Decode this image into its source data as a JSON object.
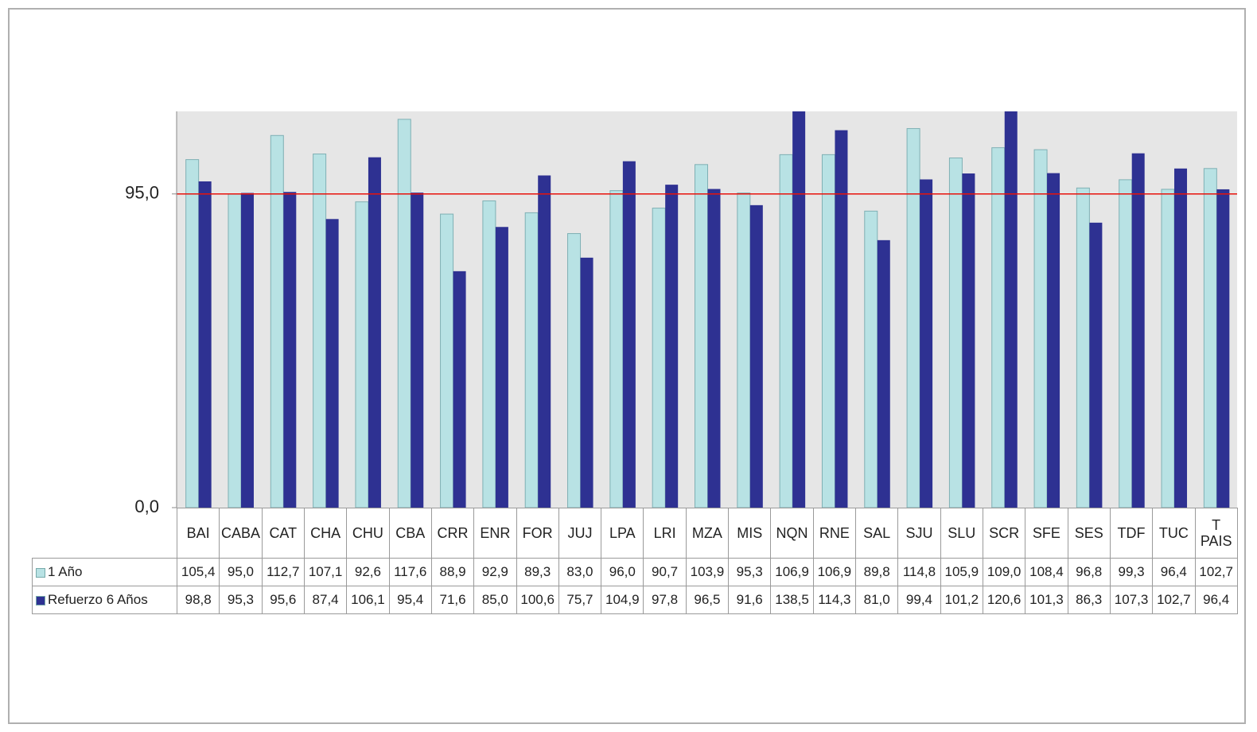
{
  "chart_data": {
    "type": "bar",
    "categories": [
      "BAI",
      "CABA",
      "CAT",
      "CHA",
      "CHU",
      "CBA",
      "CRR",
      "ENR",
      "FOR",
      "JUJ",
      "LPA",
      "LRI",
      "MZA",
      "MIS",
      "NQN",
      "RNE",
      "SAL",
      "SJU",
      "SLU",
      "SCR",
      "SFE",
      "SES",
      "TDF",
      "TUC",
      "T PAIS"
    ],
    "series": [
      {
        "name": "1 Año",
        "color": "#b8e2e4",
        "values": [
          105.4,
          95.0,
          112.7,
          107.1,
          92.6,
          117.6,
          88.9,
          92.9,
          89.3,
          83.0,
          96.0,
          90.7,
          103.9,
          95.3,
          106.9,
          106.9,
          89.8,
          114.8,
          105.9,
          109.0,
          108.4,
          96.8,
          99.3,
          96.4,
          102.7
        ],
        "value_labels": [
          "105,4",
          "95,0",
          "112,7",
          "107,1",
          "92,6",
          "117,6",
          "88,9",
          "92,9",
          "89,3",
          "83,0",
          "96,0",
          "90,7",
          "103,9",
          "95,3",
          "106,9",
          "106,9",
          "89,8",
          "114,8",
          "105,9",
          "109,0",
          "108,4",
          "96,8",
          "99,3",
          "96,4",
          "102,7"
        ]
      },
      {
        "name": "Refuerzo 6 Años",
        "color": "#2e3192",
        "values": [
          98.8,
          95.3,
          95.6,
          87.4,
          106.1,
          95.4,
          71.6,
          85.0,
          100.6,
          75.7,
          104.9,
          97.8,
          96.5,
          91.6,
          138.5,
          114.3,
          81.0,
          99.4,
          101.2,
          120.6,
          101.3,
          86.3,
          107.3,
          102.7,
          96.4
        ],
        "value_labels": [
          "98,8",
          "95,3",
          "95,6",
          "87,4",
          "106,1",
          "95,4",
          "71,6",
          "85,0",
          "100,6",
          "75,7",
          "104,9",
          "97,8",
          "96,5",
          "91,6",
          "138,5",
          "114,3",
          "81,0",
          "99,4",
          "101,2",
          "120,6",
          "101,3",
          "86,3",
          "107,3",
          "102,7",
          "96,4"
        ]
      }
    ],
    "ylim": [
      0,
      120
    ],
    "yticks": [
      {
        "value": 0,
        "label": "0,0"
      },
      {
        "value": 95,
        "label": "95,0"
      }
    ],
    "reference_line": {
      "value": 95,
      "color": "#e8120c"
    },
    "plot_background": "#e6e6e6",
    "data_table": true
  }
}
